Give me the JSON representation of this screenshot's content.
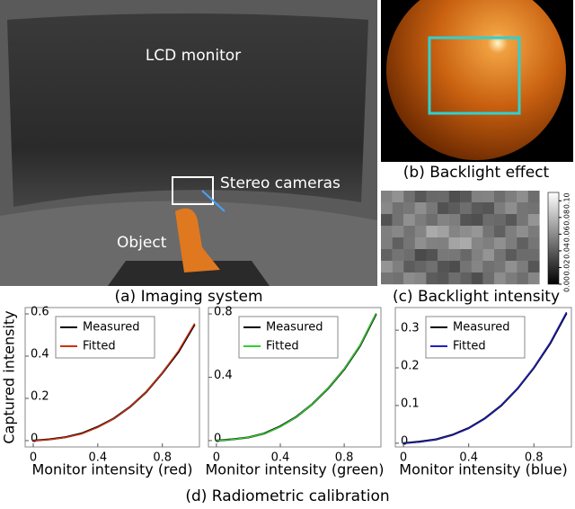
{
  "panels": {
    "a": {
      "caption": "(a) Imaging system",
      "labels": [
        "LCD monitor",
        "Stereo cameras",
        "Object"
      ]
    },
    "b": {
      "caption": "(b) Backlight effect"
    },
    "c": {
      "caption": "(c) Backlight intensity",
      "colorbar": {
        "lim": [
          0,
          0.11
        ],
        "ticks": [
          {
            "value": 0,
            "label": "0.00"
          },
          {
            "value": 0.02,
            "label": "0.02"
          },
          {
            "value": 0.04,
            "label": "0.04"
          },
          {
            "value": 0.06,
            "label": "0.06"
          },
          {
            "value": 0.08,
            "label": "0.08"
          },
          {
            "value": 0.1,
            "label": "0.10"
          }
        ]
      }
    }
  },
  "caption": "(d) Radiometric calibration",
  "chart_data": [
    {
      "type": "line",
      "ylabel": "Captured intensity",
      "xlabel": "Monitor intensity (red)",
      "x": [
        0,
        0.1,
        0.2,
        0.3,
        0.4,
        0.5,
        0.6,
        0.7,
        0.8,
        0.9,
        1.0
      ],
      "series": [
        {
          "name": "Measured",
          "color": "#000000",
          "values": [
            0,
            0.006,
            0.016,
            0.034,
            0.065,
            0.105,
            0.16,
            0.23,
            0.32,
            0.42,
            0.55
          ]
        },
        {
          "name": "Fitted",
          "color": "#d03010",
          "values": [
            0,
            0.005,
            0.015,
            0.032,
            0.063,
            0.104,
            0.16,
            0.231,
            0.321,
            0.425,
            0.555
          ]
        }
      ],
      "xlim": [
        -0.05,
        1.03
      ],
      "ylim": [
        -0.03,
        0.63
      ],
      "xticks": [
        0,
        0.4,
        0.8
      ],
      "yticks": [
        0,
        0.2,
        0.4,
        0.6
      ],
      "legend": "upper left"
    },
    {
      "type": "line",
      "xlabel": "Monitor intensity (green)",
      "x": [
        0,
        0.1,
        0.2,
        0.3,
        0.4,
        0.5,
        0.6,
        0.7,
        0.8,
        0.9,
        1.0
      ],
      "series": [
        {
          "name": "Measured",
          "color": "#000000",
          "values": [
            0,
            0.008,
            0.02,
            0.045,
            0.09,
            0.15,
            0.23,
            0.33,
            0.45,
            0.6,
            0.8
          ]
        },
        {
          "name": "Fitted",
          "color": "#30d030",
          "values": [
            0,
            0.007,
            0.02,
            0.044,
            0.088,
            0.149,
            0.23,
            0.331,
            0.452,
            0.603,
            0.805
          ]
        }
      ],
      "xlim": [
        -0.05,
        1.03
      ],
      "ylim": [
        -0.04,
        0.84
      ],
      "xticks": [
        0,
        0.4,
        0.8
      ],
      "yticks": [
        0,
        0.4,
        0.8
      ],
      "legend": "upper left"
    },
    {
      "type": "line",
      "xlabel": "Monitor intensity (blue)",
      "x": [
        0,
        0.1,
        0.2,
        0.3,
        0.4,
        0.5,
        0.6,
        0.7,
        0.8,
        0.9,
        1.0
      ],
      "series": [
        {
          "name": "Measured",
          "color": "#000000",
          "values": [
            0,
            0.004,
            0.01,
            0.022,
            0.04,
            0.066,
            0.1,
            0.145,
            0.2,
            0.265,
            0.345
          ]
        },
        {
          "name": "Fitted",
          "color": "#2020c0",
          "values": [
            0,
            0.003,
            0.01,
            0.021,
            0.039,
            0.065,
            0.1,
            0.146,
            0.201,
            0.267,
            0.348
          ]
        }
      ],
      "xlim": [
        -0.05,
        1.03
      ],
      "ylim": [
        -0.01,
        0.36
      ],
      "xticks": [
        0,
        0.4,
        0.8
      ],
      "yticks": [
        0,
        0.1,
        0.2,
        0.3
      ],
      "legend": "upper left"
    }
  ]
}
